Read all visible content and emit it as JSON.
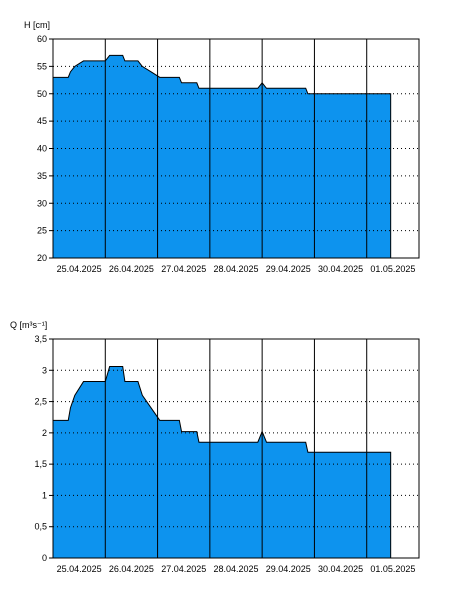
{
  "chart_data": [
    {
      "type": "area",
      "title": "",
      "ylabel": "H [cm]",
      "ylim": [
        20,
        60
      ],
      "yticks": [
        20,
        25,
        30,
        35,
        40,
        45,
        50,
        55,
        60
      ],
      "ytick_labels": [
        "20",
        "25",
        "30",
        "35",
        "40",
        "45",
        "50",
        "55",
        "60"
      ],
      "xlim": [
        "2025-04-25 00:00",
        "2025-05-02 00:00"
      ],
      "xtick_labels": [
        "25.04.2025",
        "26.04.2025",
        "27.04.2025",
        "28.04.2025",
        "29.04.2025",
        "30.04.2025",
        "01.05.2025"
      ],
      "grid": "vertical solid lines at day boundaries, horizontal dotted lines",
      "fill_color": "#0d93ee",
      "points": [
        [
          "2025-04-25 00:00",
          53
        ],
        [
          "2025-04-25 07:00",
          53
        ],
        [
          "2025-04-25 08:00",
          54
        ],
        [
          "2025-04-25 10:00",
          55
        ],
        [
          "2025-04-25 14:00",
          56
        ],
        [
          "2025-04-26 00:00",
          56
        ],
        [
          "2025-04-26 02:00",
          57
        ],
        [
          "2025-04-26 08:00",
          57
        ],
        [
          "2025-04-26 09:00",
          56
        ],
        [
          "2025-04-26 15:00",
          56
        ],
        [
          "2025-04-26 17:00",
          55
        ],
        [
          "2025-04-26 21:00",
          54
        ],
        [
          "2025-04-27 01:00",
          53
        ],
        [
          "2025-04-27 10:00",
          53
        ],
        [
          "2025-04-27 11:00",
          52
        ],
        [
          "2025-04-27 18:00",
          52
        ],
        [
          "2025-04-27 19:00",
          51
        ],
        [
          "2025-04-28 22:00",
          51
        ],
        [
          "2025-04-29 00:00",
          52
        ],
        [
          "2025-04-29 02:00",
          51
        ],
        [
          "2025-04-29 20:00",
          51
        ],
        [
          "2025-04-29 21:00",
          50
        ],
        [
          "2025-05-01 11:00",
          50
        ]
      ]
    },
    {
      "type": "area",
      "title": "",
      "ylabel": "Q [m³s⁻¹]",
      "ylim": [
        0,
        3.5
      ],
      "yticks": [
        0,
        0.5,
        1,
        1.5,
        2,
        2.5,
        3,
        3.5
      ],
      "ytick_labels": [
        "0",
        "0,5",
        "1",
        "1,5",
        "2",
        "2,5",
        "3",
        "3,5"
      ],
      "xlim": [
        "2025-04-25 00:00",
        "2025-05-02 00:00"
      ],
      "xtick_labels": [
        "25.04.2025",
        "26.04.2025",
        "27.04.2025",
        "28.04.2025",
        "29.04.2025",
        "30.04.2025",
        "01.05.2025"
      ],
      "grid": "vertical solid lines at day boundaries, horizontal dotted lines",
      "fill_color": "#0d93ee",
      "points": [
        [
          "2025-04-25 00:00",
          2.2
        ],
        [
          "2025-04-25 07:00",
          2.2
        ],
        [
          "2025-04-25 08:00",
          2.4
        ],
        [
          "2025-04-25 10:00",
          2.6
        ],
        [
          "2025-04-25 14:00",
          2.82
        ],
        [
          "2025-04-26 00:00",
          2.82
        ],
        [
          "2025-04-26 02:00",
          3.06
        ],
        [
          "2025-04-26 08:00",
          3.06
        ],
        [
          "2025-04-26 09:00",
          2.82
        ],
        [
          "2025-04-26 15:00",
          2.82
        ],
        [
          "2025-04-26 17:00",
          2.6
        ],
        [
          "2025-04-26 21:00",
          2.4
        ],
        [
          "2025-04-27 01:00",
          2.2
        ],
        [
          "2025-04-27 10:00",
          2.2
        ],
        [
          "2025-04-27 11:00",
          2.02
        ],
        [
          "2025-04-27 18:00",
          2.02
        ],
        [
          "2025-04-27 19:00",
          1.85
        ],
        [
          "2025-04-28 22:00",
          1.85
        ],
        [
          "2025-04-29 00:00",
          2.02
        ],
        [
          "2025-04-29 02:00",
          1.85
        ],
        [
          "2025-04-29 20:00",
          1.85
        ],
        [
          "2025-04-29 21:00",
          1.69
        ],
        [
          "2025-05-01 11:00",
          1.69
        ]
      ]
    }
  ]
}
